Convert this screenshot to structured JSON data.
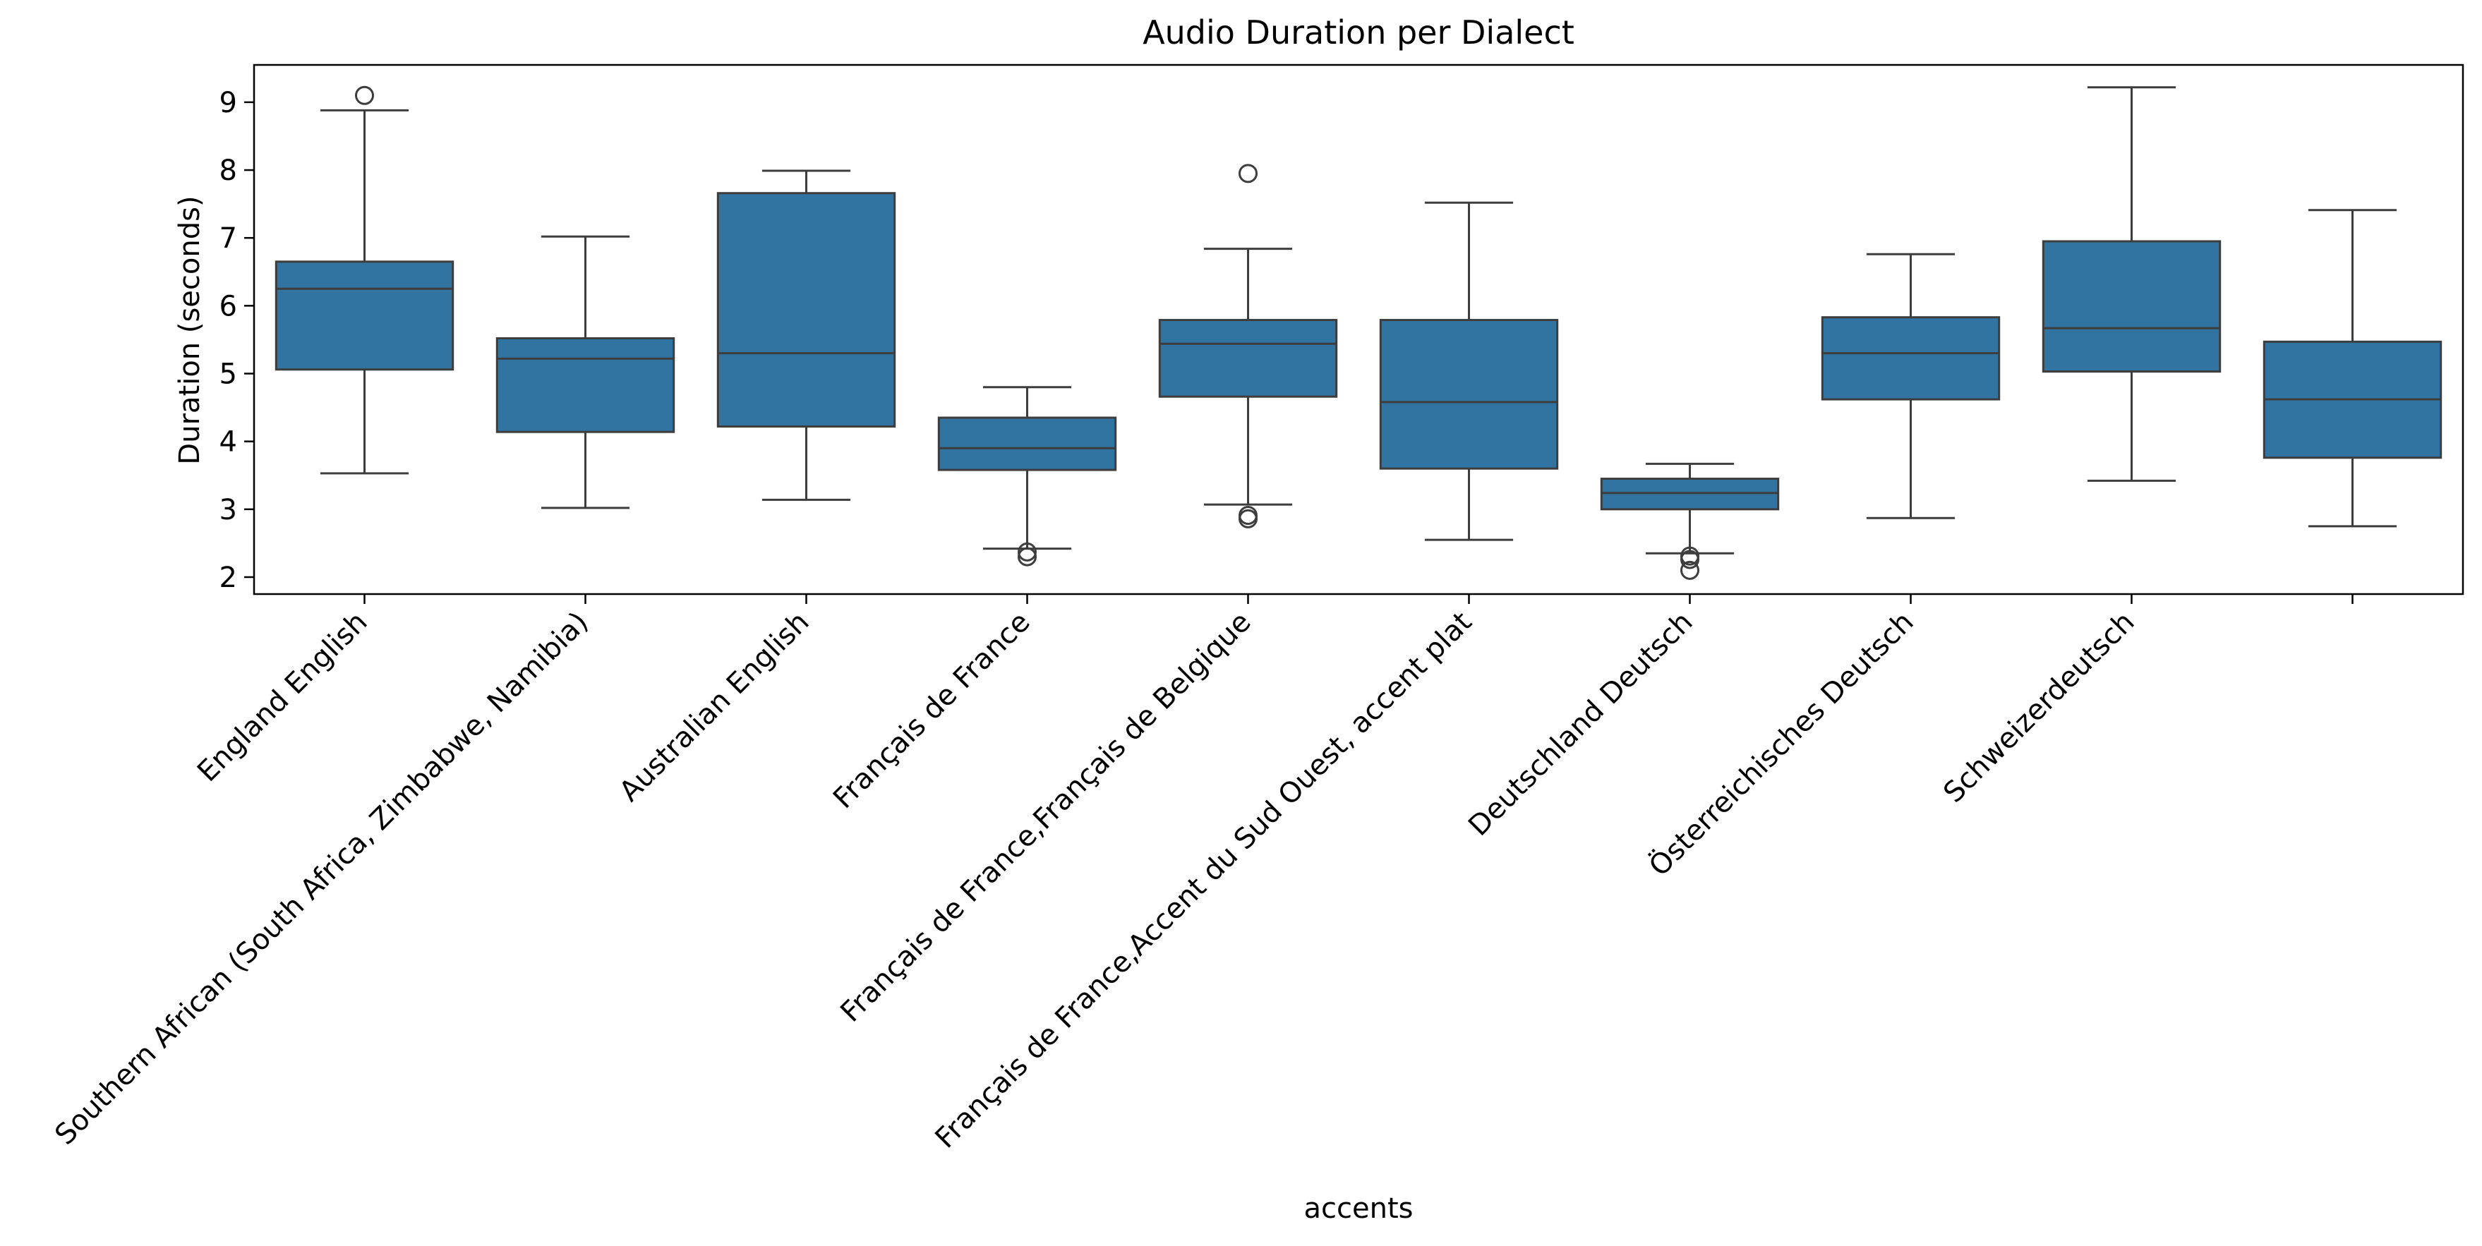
{
  "chart_data": {
    "type": "box",
    "title": "Audio Duration per Dialect",
    "xlabel": "accents",
    "ylabel": "Duration (seconds)",
    "ylim": [
      1.75,
      9.55
    ],
    "yticks": [
      2,
      3,
      4,
      5,
      6,
      7,
      8,
      9
    ],
    "grid": false,
    "legend": "none",
    "box_color": "#3274a1",
    "line_color": "#3d3d3d",
    "categories": [
      "England English",
      "Southern African (South Africa, Zimbabwe, Namibia)",
      "Australian English",
      "Français de France",
      "Français de France,Français de Belgique",
      "Français de France,Accent du Sud Ouest, accent plat",
      "Deutschland Deutsch",
      "Österreichisches Deutsch",
      "Schweizerdeutsch",
      ""
    ],
    "boxes": [
      {
        "whisker_low": 3.53,
        "q1": 5.06,
        "median": 6.25,
        "q3": 6.65,
        "whisker_high": 8.88,
        "outliers": [
          9.1
        ]
      },
      {
        "whisker_low": 3.02,
        "q1": 4.14,
        "median": 5.22,
        "q3": 5.52,
        "whisker_high": 7.02,
        "outliers": []
      },
      {
        "whisker_low": 3.14,
        "q1": 4.22,
        "median": 5.3,
        "q3": 7.66,
        "whisker_high": 7.99,
        "outliers": []
      },
      {
        "whisker_low": 2.42,
        "q1": 3.58,
        "median": 3.9,
        "q3": 4.35,
        "whisker_high": 4.8,
        "outliers": [
          2.37,
          2.3
        ]
      },
      {
        "whisker_low": 3.07,
        "q1": 4.66,
        "median": 5.44,
        "q3": 5.79,
        "whisker_high": 6.84,
        "outliers": [
          7.95,
          2.91,
          2.86
        ]
      },
      {
        "whisker_low": 2.55,
        "q1": 3.6,
        "median": 4.58,
        "q3": 5.79,
        "whisker_high": 7.52,
        "outliers": []
      },
      {
        "whisker_low": 2.35,
        "q1": 3.0,
        "median": 3.24,
        "q3": 3.45,
        "whisker_high": 3.67,
        "outliers": [
          2.31,
          2.26,
          2.1
        ]
      },
      {
        "whisker_low": 2.87,
        "q1": 4.62,
        "median": 5.3,
        "q3": 5.83,
        "whisker_high": 6.76,
        "outliers": []
      },
      {
        "whisker_low": 3.42,
        "q1": 5.03,
        "median": 5.67,
        "q3": 6.95,
        "whisker_high": 9.22,
        "outliers": []
      },
      {
        "whisker_low": 2.75,
        "q1": 3.76,
        "median": 4.62,
        "q3": 5.47,
        "whisker_high": 7.41,
        "outliers": []
      }
    ]
  }
}
